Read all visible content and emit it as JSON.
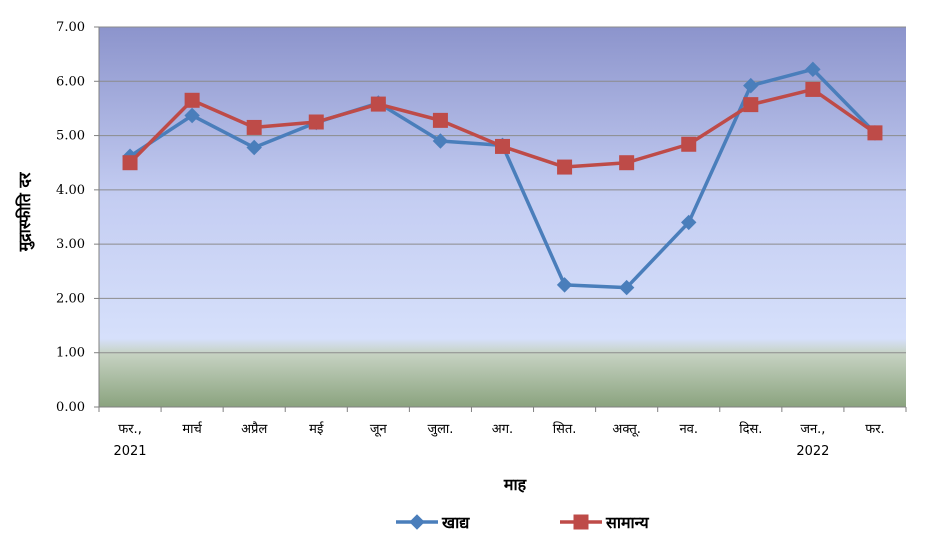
{
  "chart_data": {
    "type": "line",
    "title": "",
    "xlabel": "माह",
    "ylabel": "मुद्रास्फीति दर",
    "ylim": [
      0,
      7
    ],
    "yticks": [
      "0.00",
      "1.00",
      "2.00",
      "3.00",
      "4.00",
      "5.00",
      "6.00",
      "7.00"
    ],
    "categories": [
      "फर., 2021",
      "मार्च",
      "अप्रैल",
      "मई",
      "जून",
      "जुला.",
      "अग.",
      "सित.",
      "अक्तू.",
      "नव.",
      "दिस.",
      "जन., 2022",
      "फर."
    ],
    "category_lines": [
      [
        "फर.,",
        "2021"
      ],
      [
        "मार्च"
      ],
      [
        "अप्रैल"
      ],
      [
        "मई"
      ],
      [
        "जून"
      ],
      [
        "जुला."
      ],
      [
        "अग."
      ],
      [
        "सित."
      ],
      [
        "अक्तू."
      ],
      [
        "नव."
      ],
      [
        "दिस."
      ],
      [
        "जन.,",
        "2022"
      ],
      [
        "फर."
      ]
    ],
    "grid": true,
    "legend_position": "bottom",
    "series": [
      {
        "name": "खाद्य",
        "color": "#4a7ebb",
        "marker": "diamond",
        "values": [
          4.62,
          5.37,
          4.78,
          5.24,
          5.6,
          4.9,
          4.82,
          2.25,
          2.2,
          3.4,
          5.92,
          6.22,
          5.05
        ]
      },
      {
        "name": "सामान्य",
        "color": "#be4b48",
        "marker": "square",
        "values": [
          4.5,
          5.65,
          5.15,
          5.25,
          5.58,
          5.28,
          4.8,
          4.42,
          4.5,
          4.84,
          5.57,
          5.85,
          5.05
        ]
      }
    ]
  }
}
